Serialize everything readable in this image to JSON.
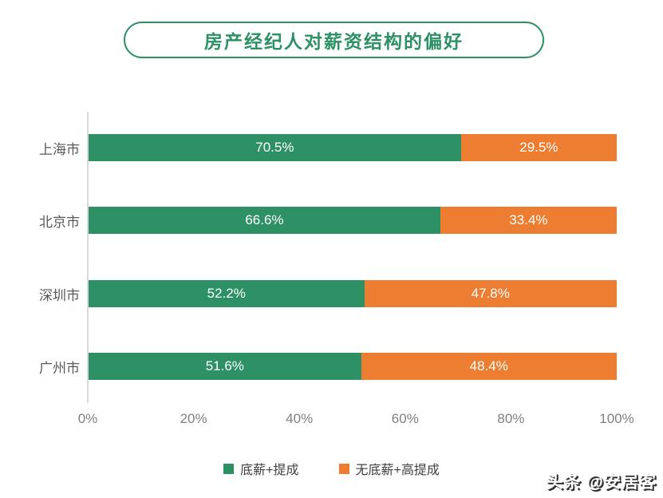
{
  "title": "房产经纪人对薪资结构的偏好",
  "watermark": "头条 @安居客",
  "colors": {
    "brand_green": "#2E9166",
    "brand_orange": "#ED7D31",
    "axis_line": "#D9D9D9",
    "category_text": "#595959",
    "tick_text": "#7F7F7F",
    "legend_text": "#404040"
  },
  "chart_data": {
    "type": "bar",
    "orientation": "horizontal_stacked",
    "title": "房产经纪人对薪资结构的偏好",
    "categories": [
      "上海市",
      "北京市",
      "深圳市",
      "广州市"
    ],
    "series": [
      {
        "name": "底薪+提成",
        "color": "#2E9166",
        "values": [
          70.5,
          66.6,
          52.2,
          51.6
        ]
      },
      {
        "name": "无底薪+高提成",
        "color": "#ED7D31",
        "values": [
          29.5,
          33.4,
          47.8,
          48.4
        ]
      }
    ],
    "data_labels": [
      [
        "70.5%",
        "29.5%"
      ],
      [
        "66.6%",
        "33.4%"
      ],
      [
        "52.2%",
        "47.8%"
      ],
      [
        "51.6%",
        "48.4%"
      ]
    ],
    "x_ticks": [
      "0%",
      "20%",
      "40%",
      "60%",
      "80%",
      "100%"
    ],
    "xlim": [
      0,
      100
    ],
    "grid": false,
    "legend_position": "bottom"
  }
}
